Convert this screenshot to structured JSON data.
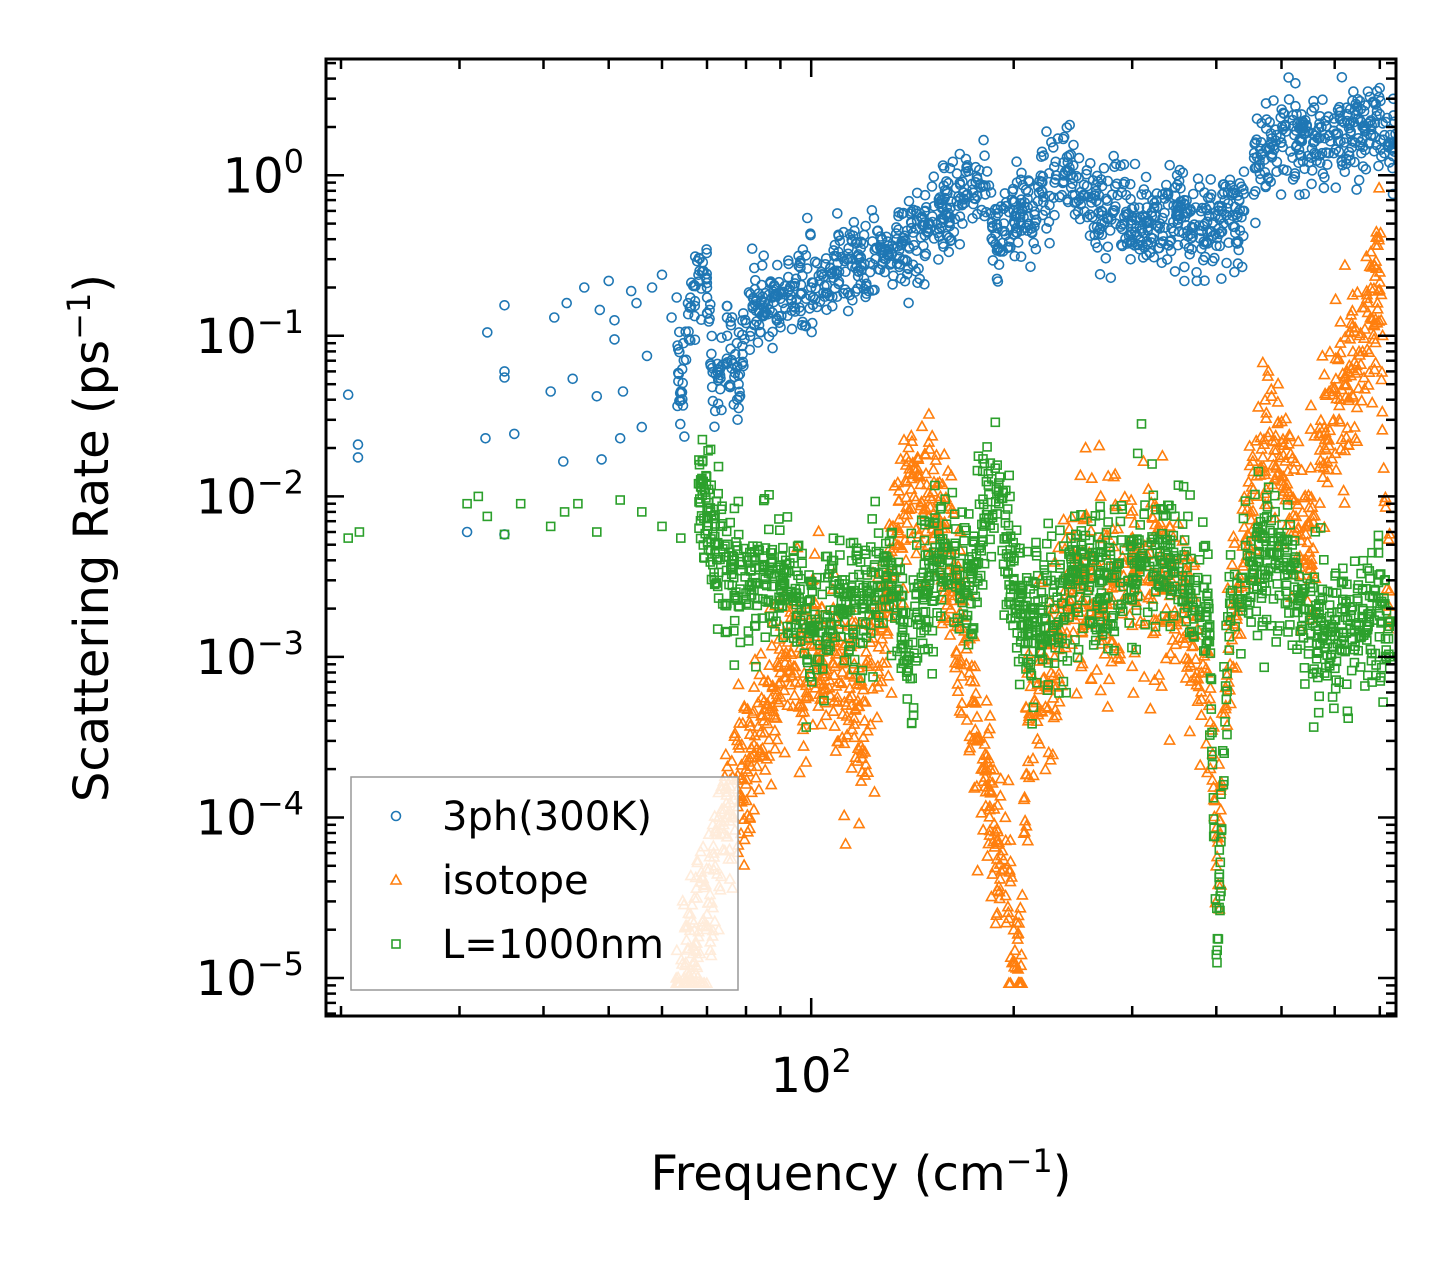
{
  "chart_data": {
    "type": "scatter",
    "xscale": "log",
    "yscale": "log",
    "xlim": [
      19,
      740
    ],
    "ylim": [
      5.8e-06,
      5.3
    ],
    "xlabel": {
      "text": "Frequency (cm",
      "sup": "−1",
      "tail": ")"
    },
    "ylabel": {
      "text": "Scattering Rate (ps",
      "sup": "−1",
      "tail": ")"
    },
    "xticks": [
      {
        "value": 100,
        "base": "10",
        "exp": "2"
      }
    ],
    "yticks": [
      {
        "value": 1,
        "base": "10",
        "exp": "0"
      },
      {
        "value": 0.1,
        "base": "10",
        "exp": "−1"
      },
      {
        "value": 0.01,
        "base": "10",
        "exp": "−2"
      },
      {
        "value": 0.001,
        "base": "10",
        "exp": "−3"
      },
      {
        "value": 0.0001,
        "base": "10",
        "exp": "−4"
      },
      {
        "value": 1e-05,
        "base": "10",
        "exp": "−5"
      }
    ],
    "legend_position": "lower-left",
    "series": [
      {
        "name": "3ph(300K)",
        "marker": "circle",
        "color": "#1f77b4",
        "sample_points": [
          [
            20.5,
            0.043
          ],
          [
            21.2,
            0.021
          ],
          [
            21.2,
            0.0175
          ],
          [
            30.8,
            0.006
          ],
          [
            32.8,
            0.023
          ],
          [
            33.0,
            0.105
          ],
          [
            35.0,
            0.155
          ],
          [
            35.0,
            0.06
          ],
          [
            35.0,
            0.055
          ],
          [
            35.0,
            0.0058
          ],
          [
            36.2,
            0.0245
          ],
          [
            41,
            0.045
          ],
          [
            41.5,
            0.13
          ],
          [
            42.8,
            0.0165
          ],
          [
            43.3,
            0.16
          ],
          [
            44.2,
            0.054
          ],
          [
            46,
            0.2
          ],
          [
            48,
            0.042
          ],
          [
            48.5,
            0.145
          ],
          [
            48.8,
            0.017
          ],
          [
            50,
            0.22
          ],
          [
            51,
            0.125
          ],
          [
            51,
            0.095
          ],
          [
            52,
            0.023
          ],
          [
            52.5,
            0.045
          ],
          [
            54,
            0.19
          ],
          [
            55,
            0.16
          ],
          [
            56,
            0.027
          ],
          [
            57,
            0.075
          ],
          [
            58,
            0.2
          ],
          [
            60,
            0.24
          ],
          [
            62,
            0.13
          ],
          [
            64,
            0.045
          ],
          [
            66,
            0.15
          ],
          [
            68,
            0.24
          ],
          [
            70,
            0.2
          ],
          [
            72,
            0.034
          ],
          [
            75,
            0.1
          ],
          [
            78,
            0.05
          ],
          [
            80,
            0.12
          ],
          [
            85,
            0.15
          ],
          [
            90,
            0.17
          ],
          [
            100,
            0.2
          ],
          [
            110,
            0.25
          ],
          [
            120,
            0.28
          ],
          [
            130,
            0.32
          ],
          [
            140,
            0.35
          ],
          [
            150,
            0.5
          ],
          [
            160,
            0.55
          ],
          [
            170,
            0.75
          ],
          [
            180,
            0.85
          ],
          [
            190,
            0.35
          ],
          [
            200,
            0.6
          ],
          [
            210,
            0.55
          ],
          [
            220,
            0.8
          ],
          [
            230,
            0.9
          ],
          [
            240,
            1.3
          ],
          [
            250,
            0.7
          ],
          [
            270,
            0.6
          ],
          [
            300,
            0.55
          ],
          [
            330,
            0.5
          ],
          [
            350,
            0.6
          ],
          [
            380,
            0.45
          ],
          [
            410,
            0.5
          ],
          [
            430,
            0.55
          ],
          [
            440,
            0.6
          ],
          [
            460,
            1.3
          ],
          [
            500,
            1.6
          ],
          [
            540,
            1.8
          ],
          [
            580,
            1.7
          ],
          [
            620,
            1.6
          ],
          [
            660,
            2.0
          ],
          [
            700,
            2.4
          ],
          [
            720,
            1.5
          ]
        ]
      },
      {
        "name": "isotope",
        "marker": "triangle",
        "color": "#ff7f0e",
        "sample_points": [
          [
            63,
            1e-05
          ],
          [
            65,
            1.2e-05
          ],
          [
            67,
            1.5e-05
          ],
          [
            70,
            2.5e-05
          ],
          [
            72,
            5e-05
          ],
          [
            75,
            0.0001
          ],
          [
            80,
            0.0002
          ],
          [
            85,
            0.0004
          ],
          [
            90,
            0.0008
          ],
          [
            100,
            0.0012
          ],
          [
            110,
            0.0007
          ],
          [
            120,
            0.0004
          ],
          [
            130,
            0.002
          ],
          [
            140,
            0.014
          ],
          [
            150,
            0.01
          ],
          [
            160,
            0.005
          ],
          [
            170,
            0.0009
          ],
          [
            180,
            0.0002
          ],
          [
            190,
            7e-05
          ],
          [
            200,
            2e-05
          ],
          [
            205,
            1.2e-05
          ],
          [
            210,
            0.0004
          ],
          [
            230,
            0.001
          ],
          [
            250,
            0.003
          ],
          [
            270,
            0.002
          ],
          [
            300,
            0.004
          ],
          [
            330,
            0.003
          ],
          [
            360,
            0.002
          ],
          [
            390,
            0.0005
          ],
          [
            400,
            5e-05
          ],
          [
            420,
            0.0015
          ],
          [
            450,
            0.008
          ],
          [
            480,
            0.025
          ],
          [
            510,
            0.012
          ],
          [
            540,
            0.004
          ],
          [
            580,
            0.02
          ],
          [
            620,
            0.05
          ],
          [
            660,
            0.08
          ],
          [
            700,
            0.25
          ],
          [
            720,
            0.0015
          ]
        ]
      },
      {
        "name": "L=1000nm",
        "marker": "square",
        "color": "#2ca02c",
        "sample_points": [
          [
            20.5,
            0.0055
          ],
          [
            21.3,
            0.006
          ],
          [
            30.8,
            0.009
          ],
          [
            32,
            0.01
          ],
          [
            33,
            0.0075
          ],
          [
            35,
            0.0058
          ],
          [
            37,
            0.009
          ],
          [
            41,
            0.0065
          ],
          [
            43,
            0.008
          ],
          [
            45,
            0.009
          ],
          [
            48,
            0.006
          ],
          [
            52,
            0.0095
          ],
          [
            56,
            0.008
          ],
          [
            60,
            0.0065
          ],
          [
            64,
            0.0055
          ],
          [
            68,
            0.012
          ],
          [
            72,
            0.005
          ],
          [
            76,
            0.0035
          ],
          [
            80,
            0.0025
          ],
          [
            85,
            0.0035
          ],
          [
            90,
            0.003
          ],
          [
            95,
            0.0025
          ],
          [
            100,
            0.0015
          ],
          [
            110,
            0.0025
          ],
          [
            120,
            0.002
          ],
          [
            130,
            0.004
          ],
          [
            140,
            0.001
          ],
          [
            150,
            0.003
          ],
          [
            160,
            0.004
          ],
          [
            170,
            0.0025
          ],
          [
            180,
            0.006
          ],
          [
            190,
            0.009
          ],
          [
            200,
            0.003
          ],
          [
            210,
            0.0015
          ],
          [
            230,
            0.002
          ],
          [
            250,
            0.003
          ],
          [
            270,
            0.0025
          ],
          [
            300,
            0.004
          ],
          [
            330,
            0.0045
          ],
          [
            360,
            0.003
          ],
          [
            390,
            0.002
          ],
          [
            400,
            1.4e-05
          ],
          [
            420,
            0.0025
          ],
          [
            450,
            0.003
          ],
          [
            480,
            0.0045
          ],
          [
            510,
            0.0035
          ],
          [
            540,
            0.002
          ],
          [
            580,
            0.0015
          ],
          [
            620,
            0.0012
          ],
          [
            660,
            0.002
          ],
          [
            700,
            0.0018
          ],
          [
            720,
            0.0015
          ]
        ]
      }
    ]
  }
}
